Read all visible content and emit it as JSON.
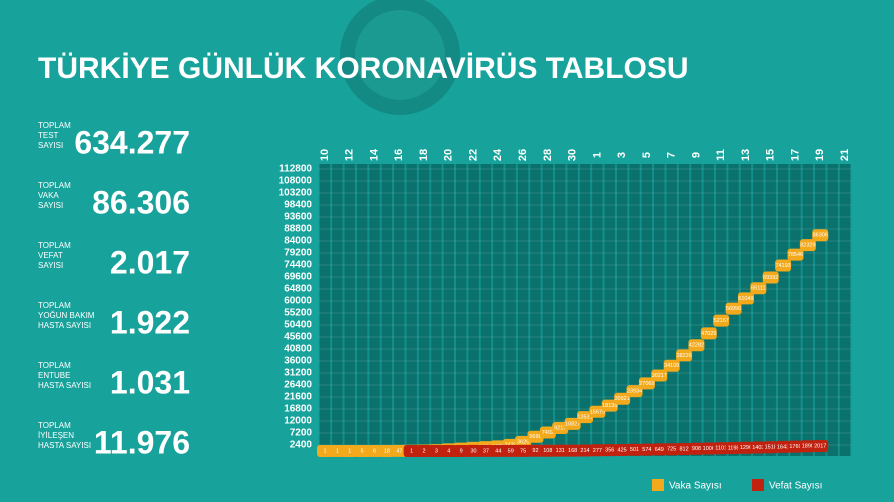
{
  "title": "TÜRKİYE GÜNLÜK KORONAVİRÜS TABLOSU",
  "stats": [
    {
      "label": [
        "TOPLAM",
        "TEST",
        "SAYISI"
      ],
      "value": "634.277"
    },
    {
      "label": [
        "TOPLAM",
        "VAKA",
        "SAYISI"
      ],
      "value": "86.306"
    },
    {
      "label": [
        "TOPLAM",
        "VEFAT",
        "SAYISI"
      ],
      "value": "2.017"
    },
    {
      "label": [
        "TOPLAM",
        "YOĞUN BAKIM",
        "HASTA SAYISI"
      ],
      "value": "1.922"
    },
    {
      "label": [
        "TOPLAM",
        "ENTUBE",
        "HASTA SAYISI"
      ],
      "value": "1.031"
    },
    {
      "label": [
        "TOPLAM",
        "İYİLEŞEN",
        "HASTA SAYISI"
      ],
      "value": "11.976"
    }
  ],
  "chart_data": {
    "type": "label-line",
    "categories": [
      "10",
      null,
      "12",
      null,
      "14",
      null,
      "16",
      null,
      "18",
      null,
      "20",
      null,
      "22",
      null,
      "24",
      null,
      "26",
      null,
      "28",
      null,
      "30",
      null,
      "1",
      null,
      "3",
      null,
      "5",
      null,
      "7",
      null,
      "9",
      null,
      "11",
      null,
      "13",
      null,
      "15",
      null,
      "17",
      null,
      "19",
      null,
      "21"
    ],
    "series": [
      {
        "name": "Vaka Sayısı",
        "color": "#f2a91c",
        "values": [
          1,
          1,
          1,
          5,
          6,
          18,
          47,
          98,
          191,
          359,
          670,
          947,
          1236,
          1529,
          1872,
          2433,
          3629,
          5698,
          7402,
          9217,
          10827,
          13531,
          15679,
          18135,
          20921,
          23934,
          27069,
          30217,
          34109,
          38226,
          42282,
          47029,
          52167,
          56956,
          61049,
          65111,
          69392,
          74193,
          78546,
          82329,
          86306,
          null,
          null
        ]
      },
      {
        "name": "Vefat Sayısı",
        "color": "#c0220f",
        "values": [
          null,
          null,
          null,
          null,
          null,
          null,
          null,
          1,
          2,
          3,
          4,
          9,
          30,
          37,
          44,
          59,
          75,
          92,
          108,
          131,
          168,
          214,
          277,
          356,
          425,
          501,
          574,
          649,
          725,
          812,
          908,
          1006,
          1101,
          1198,
          1296,
          1403,
          1518,
          1643,
          1769,
          1890,
          2017,
          null,
          null
        ]
      }
    ],
    "ylim": [
      0,
      112800
    ],
    "yticks": [
      2400,
      7200,
      12000,
      16800,
      21600,
      26400,
      31200,
      36000,
      40800,
      45600,
      50400,
      55200,
      60000,
      64800,
      69600,
      74400,
      79200,
      84000,
      88800,
      93600,
      98400,
      103200,
      108000,
      112800
    ],
    "grid": true
  }
}
